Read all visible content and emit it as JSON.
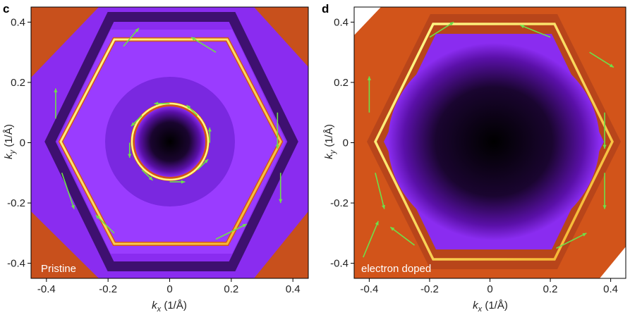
{
  "chart_data": [
    {
      "type": "heatmap",
      "panel": "c",
      "annotation": "Pristine",
      "xlabel_main": "k",
      "xlabel_sub": "x",
      "xlabel_unit": " (1/Å)",
      "ylabel_main": "k",
      "ylabel_sub": "y",
      "ylabel_unit": " (1/Å)",
      "xlim": [
        -0.45,
        0.45
      ],
      "ylim": [
        -0.45,
        0.45
      ],
      "xticks": [
        "-0.4",
        "-0.2",
        "0",
        "0.2",
        "0.4"
      ],
      "yticks": [
        "0.4",
        "0.2",
        "0",
        "-0.2",
        "-0.4"
      ],
      "colormap": [
        "#000000",
        "#5a10a8",
        "#9a35ff",
        "#d2541a",
        "#f0a020",
        "#ffff80"
      ],
      "arrow_color": "#6ee04a",
      "features": {
        "inner_circle_radius": 0.13,
        "hexagon_radius": 0.37,
        "background_level": 0.4
      },
      "arrows": [
        {
          "x": 0.0,
          "y": 0.13,
          "dx": -0.05,
          "dy": 0.0
        },
        {
          "x": -0.09,
          "y": 0.09,
          "dx": -0.035,
          "dy": -0.035
        },
        {
          "x": -0.13,
          "y": 0.0,
          "dx": 0.0,
          "dy": -0.05
        },
        {
          "x": -0.09,
          "y": -0.09,
          "dx": 0.035,
          "dy": -0.035
        },
        {
          "x": 0.0,
          "y": -0.13,
          "dx": 0.05,
          "dy": 0.0
        },
        {
          "x": 0.09,
          "y": -0.09,
          "dx": 0.035,
          "dy": 0.035
        },
        {
          "x": 0.13,
          "y": 0.0,
          "dx": 0.0,
          "dy": 0.05
        },
        {
          "x": 0.09,
          "y": 0.09,
          "dx": -0.035,
          "dy": 0.035
        },
        {
          "x": -0.37,
          "y": 0.08,
          "dx": 0.0,
          "dy": 0.1
        },
        {
          "x": -0.35,
          "y": -0.1,
          "dx": 0.04,
          "dy": -0.12
        },
        {
          "x": 0.35,
          "y": 0.1,
          "dx": 0.0,
          "dy": -0.12
        },
        {
          "x": 0.15,
          "y": 0.3,
          "dx": -0.08,
          "dy": 0.05
        },
        {
          "x": -0.15,
          "y": 0.32,
          "dx": 0.05,
          "dy": 0.06
        },
        {
          "x": 0.15,
          "y": -0.32,
          "dx": 0.1,
          "dy": 0.05
        },
        {
          "x": -0.18,
          "y": -0.3,
          "dx": -0.06,
          "dy": 0.06
        },
        {
          "x": 0.36,
          "y": -0.1,
          "dx": 0.0,
          "dy": -0.1
        }
      ]
    },
    {
      "type": "heatmap",
      "panel": "d",
      "annotation": "electron doped",
      "xlabel_main": "k",
      "xlabel_sub": "x",
      "xlabel_unit": " (1/Å)",
      "ylabel_main": "k",
      "ylabel_sub": "y",
      "ylabel_unit": " (1/Å)",
      "xlim": [
        -0.45,
        0.45
      ],
      "ylim": [
        -0.45,
        0.45
      ],
      "xticks": [
        "-0.4",
        "-0.2",
        "0",
        "0.2",
        "0.4"
      ],
      "yticks": [
        "0.4",
        "0.2",
        "0",
        "-0.2",
        "-0.4"
      ],
      "colormap": [
        "#000000",
        "#5a10a8",
        "#9a35ff",
        "#d2541a",
        "#f0a020",
        "#ffff80"
      ],
      "arrow_color": "#6ee04a",
      "features": {
        "inner_circle_radius": 0,
        "hexagon_radius": 0.41,
        "background_level": 0.55
      },
      "arrows": [
        {
          "x": -0.4,
          "y": 0.1,
          "dx": 0.0,
          "dy": 0.12
        },
        {
          "x": -0.38,
          "y": -0.1,
          "dx": 0.03,
          "dy": -0.12
        },
        {
          "x": 0.38,
          "y": 0.1,
          "dx": 0.0,
          "dy": -0.12
        },
        {
          "x": 0.38,
          "y": -0.1,
          "dx": 0.0,
          "dy": -0.12
        },
        {
          "x": 0.2,
          "y": 0.35,
          "dx": -0.1,
          "dy": 0.04
        },
        {
          "x": -0.2,
          "y": 0.35,
          "dx": 0.08,
          "dy": 0.05
        },
        {
          "x": 0.22,
          "y": -0.35,
          "dx": 0.1,
          "dy": 0.05
        },
        {
          "x": -0.25,
          "y": -0.34,
          "dx": -0.08,
          "dy": 0.06
        },
        {
          "x": -0.42,
          "y": -0.38,
          "dx": 0.05,
          "dy": 0.12
        },
        {
          "x": 0.33,
          "y": 0.3,
          "dx": 0.08,
          "dy": -0.05
        }
      ]
    }
  ]
}
